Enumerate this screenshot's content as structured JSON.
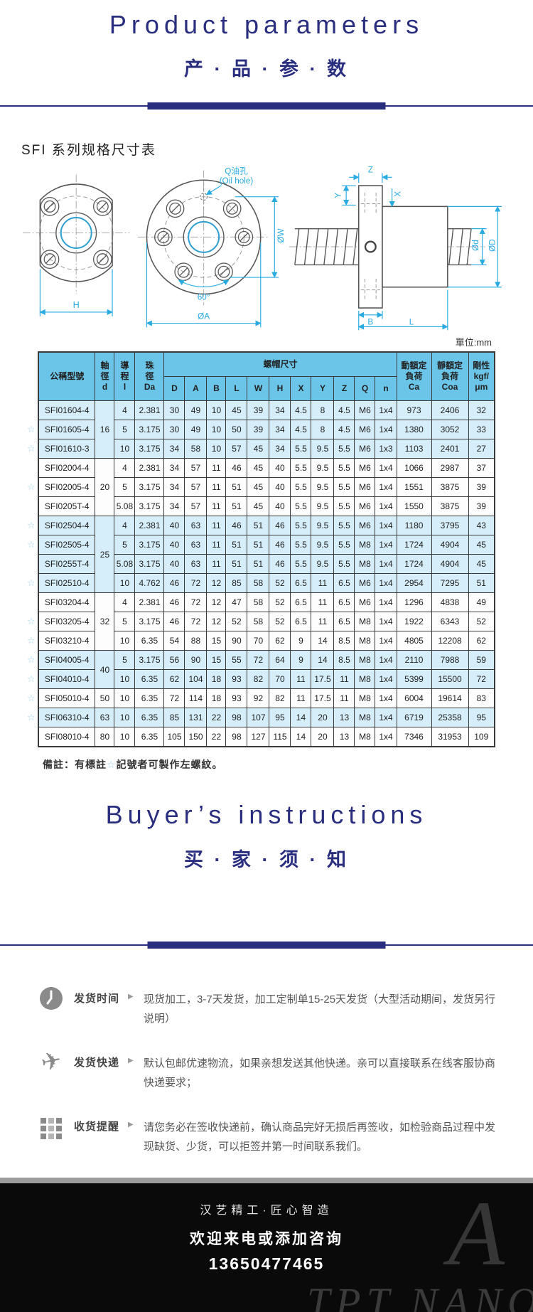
{
  "header": {
    "title_en": "Product parameters",
    "title_zh": "产 · 品 · 参 · 数"
  },
  "section": {
    "table_title": "SFI 系列规格尺寸表",
    "unit_label": "單位:mm"
  },
  "diagram": {
    "oil_hole_zh": "Q油孔",
    "oil_hole_en": "(Oil hole)",
    "w": "ØW",
    "h": "H",
    "angle": "60°",
    "a": "ØA",
    "z": "Z",
    "y": "Y",
    "x": "X",
    "d_small": "Ød",
    "d_big": "ØD",
    "b": "B",
    "l": "L"
  },
  "table": {
    "star_glyph": "☆",
    "header": {
      "model": "公稱型號",
      "d": "軸\n徑\nd",
      "lead": "導\n程\nl",
      "da": "珠\n徑\nDa",
      "nut_dims": "螺帽尺寸",
      "dims": [
        "D",
        "A",
        "B",
        "L",
        "W",
        "H",
        "X",
        "Y",
        "Z",
        "Q",
        "n"
      ],
      "ca": "動額定\n負荷\nCa",
      "coa": "靜額定\n負荷\nCoa",
      "rigidity": "剛性\nkgf/\nμm"
    },
    "groups": [
      {
        "d": "16",
        "shade": true,
        "rows": [
          {
            "star": false,
            "model": "SFI01604-4",
            "lead": "4",
            "da": "2.381",
            "dims": [
              "30",
              "49",
              "10",
              "45",
              "39",
              "34",
              "4.5",
              "8",
              "4.5",
              "M6",
              "1x4"
            ],
            "ca": "973",
            "coa": "2406",
            "rigidity": "32"
          },
          {
            "star": true,
            "model": "SFI01605-4",
            "lead": "5",
            "da": "3.175",
            "dims": [
              "30",
              "49",
              "10",
              "50",
              "39",
              "34",
              "4.5",
              "8",
              "4.5",
              "M6",
              "1x4"
            ],
            "ca": "1380",
            "coa": "3052",
            "rigidity": "33"
          },
          {
            "star": true,
            "model": "SFI01610-3",
            "lead": "10",
            "da": "3.175",
            "dims": [
              "34",
              "58",
              "10",
              "57",
              "45",
              "34",
              "5.5",
              "9.5",
              "5.5",
              "M6",
              "1x3"
            ],
            "ca": "1103",
            "coa": "2401",
            "rigidity": "27"
          }
        ]
      },
      {
        "d": "20",
        "shade": false,
        "rows": [
          {
            "star": false,
            "model": "SFI02004-4",
            "lead": "4",
            "da": "2.381",
            "dims": [
              "34",
              "57",
              "11",
              "46",
              "45",
              "40",
              "5.5",
              "9.5",
              "5.5",
              "M6",
              "1x4"
            ],
            "ca": "1066",
            "coa": "2987",
            "rigidity": "37"
          },
          {
            "star": true,
            "model": "SFI02005-4",
            "lead": "5",
            "da": "3.175",
            "dims": [
              "34",
              "57",
              "11",
              "51",
              "45",
              "40",
              "5.5",
              "9.5",
              "5.5",
              "M6",
              "1x4"
            ],
            "ca": "1551",
            "coa": "3875",
            "rigidity": "39"
          },
          {
            "star": false,
            "model": "SFI0205T-4",
            "lead": "5.08",
            "da": "3.175",
            "dims": [
              "34",
              "57",
              "11",
              "51",
              "45",
              "40",
              "5.5",
              "9.5",
              "5.5",
              "M6",
              "1x4"
            ],
            "ca": "1550",
            "coa": "3875",
            "rigidity": "39"
          }
        ]
      },
      {
        "d": "25",
        "shade": true,
        "rows": [
          {
            "star": true,
            "model": "SFI02504-4",
            "lead": "4",
            "da": "2.381",
            "dims": [
              "40",
              "63",
              "11",
              "46",
              "51",
              "46",
              "5.5",
              "9.5",
              "5.5",
              "M6",
              "1x4"
            ],
            "ca": "1180",
            "coa": "3795",
            "rigidity": "43"
          },
          {
            "star": true,
            "model": "SFI02505-4",
            "lead": "5",
            "da": "3.175",
            "dims": [
              "40",
              "63",
              "11",
              "51",
              "51",
              "46",
              "5.5",
              "9.5",
              "5.5",
              "M8",
              "1x4"
            ],
            "ca": "1724",
            "coa": "4904",
            "rigidity": "45"
          },
          {
            "star": false,
            "model": "SFI0255T-4",
            "lead": "5.08",
            "da": "3.175",
            "dims": [
              "40",
              "63",
              "11",
              "51",
              "51",
              "46",
              "5.5",
              "9.5",
              "5.5",
              "M8",
              "1x4"
            ],
            "ca": "1724",
            "coa": "4904",
            "rigidity": "45"
          },
          {
            "star": true,
            "model": "SFI02510-4",
            "lead": "10",
            "da": "4.762",
            "dims": [
              "46",
              "72",
              "12",
              "85",
              "58",
              "52",
              "6.5",
              "11",
              "6.5",
              "M6",
              "1x4"
            ],
            "ca": "2954",
            "coa": "7295",
            "rigidity": "51"
          }
        ]
      },
      {
        "d": "32",
        "shade": false,
        "rows": [
          {
            "star": false,
            "model": "SFI03204-4",
            "lead": "4",
            "da": "2.381",
            "dims": [
              "46",
              "72",
              "12",
              "47",
              "58",
              "52",
              "6.5",
              "11",
              "6.5",
              "M6",
              "1x4"
            ],
            "ca": "1296",
            "coa": "4838",
            "rigidity": "49"
          },
          {
            "star": true,
            "model": "SFI03205-4",
            "lead": "5",
            "da": "3.175",
            "dims": [
              "46",
              "72",
              "12",
              "52",
              "58",
              "52",
              "6.5",
              "11",
              "6.5",
              "M8",
              "1x4"
            ],
            "ca": "1922",
            "coa": "6343",
            "rigidity": "52"
          },
          {
            "star": true,
            "model": "SFI03210-4",
            "lead": "10",
            "da": "6.35",
            "dims": [
              "54",
              "88",
              "15",
              "90",
              "70",
              "62",
              "9",
              "14",
              "8.5",
              "M8",
              "1x4"
            ],
            "ca": "4805",
            "coa": "12208",
            "rigidity": "62"
          }
        ]
      },
      {
        "d": "40",
        "shade": true,
        "rows": [
          {
            "star": true,
            "model": "SFI04005-4",
            "lead": "5",
            "da": "3.175",
            "dims": [
              "56",
              "90",
              "15",
              "55",
              "72",
              "64",
              "9",
              "14",
              "8.5",
              "M8",
              "1x4"
            ],
            "ca": "2110",
            "coa": "7988",
            "rigidity": "59"
          },
          {
            "star": true,
            "model": "SFI04010-4",
            "lead": "10",
            "da": "6.35",
            "dims": [
              "62",
              "104",
              "18",
              "93",
              "82",
              "70",
              "11",
              "17.5",
              "11",
              "M8",
              "1x4"
            ],
            "ca": "5399",
            "coa": "15500",
            "rigidity": "72"
          }
        ]
      },
      {
        "d": "50",
        "shade": false,
        "rows": [
          {
            "star": true,
            "model": "SFI05010-4",
            "lead": "10",
            "da": "6.35",
            "dims": [
              "72",
              "114",
              "18",
              "93",
              "92",
              "82",
              "11",
              "17.5",
              "11",
              "M8",
              "1x4"
            ],
            "ca": "6004",
            "coa": "19614",
            "rigidity": "83"
          }
        ]
      },
      {
        "d": "63",
        "shade": true,
        "rows": [
          {
            "star": true,
            "model": "SFI06310-4",
            "lead": "10",
            "da": "6.35",
            "dims": [
              "85",
              "131",
              "22",
              "98",
              "107",
              "95",
              "14",
              "20",
              "13",
              "M8",
              "1x4"
            ],
            "ca": "6719",
            "coa": "25358",
            "rigidity": "95"
          }
        ]
      },
      {
        "d": "80",
        "shade": false,
        "rows": [
          {
            "star": false,
            "model": "SFI08010-4",
            "lead": "10",
            "da": "6.35",
            "dims": [
              "105",
              "150",
              "22",
              "98",
              "127",
              "115",
              "14",
              "20",
              "13",
              "M8",
              "1x4"
            ],
            "ca": "7346",
            "coa": "31953",
            "rigidity": "109"
          }
        ]
      }
    ]
  },
  "note": {
    "prefix": "備註：有標註",
    "star": "☆",
    "suffix": "記號者可製作左螺紋。"
  },
  "buyers": {
    "title_en": "Buyer’s instructions",
    "title_zh": "买 · 家 · 须 · 知"
  },
  "misc": {
    "arrow": "▶"
  },
  "instructions": [
    {
      "label": "发货时间",
      "text": "现货加工，3-7天发货，加工定制单15-25天发货（大型活动期间，发货另行说明）"
    },
    {
      "label": "发货快递",
      "text": "默认包邮优速物流，如果亲想发送其他快递。亲可以直接联系在线客服协商快递要求；"
    },
    {
      "label": "收货提醒",
      "text": "请您务必在签收快递前，确认商品完好无损后再签收，如检验商品过程中发现缺货、少货，可以拒签并第一时间联系我们。"
    }
  ],
  "footer": {
    "tagline": "汉艺精工·匠心智造",
    "line2": "欢迎来电或添加咨询",
    "phone": "13650477465",
    "watermark": "TPT NANO",
    "watermark_logo": "A"
  }
}
